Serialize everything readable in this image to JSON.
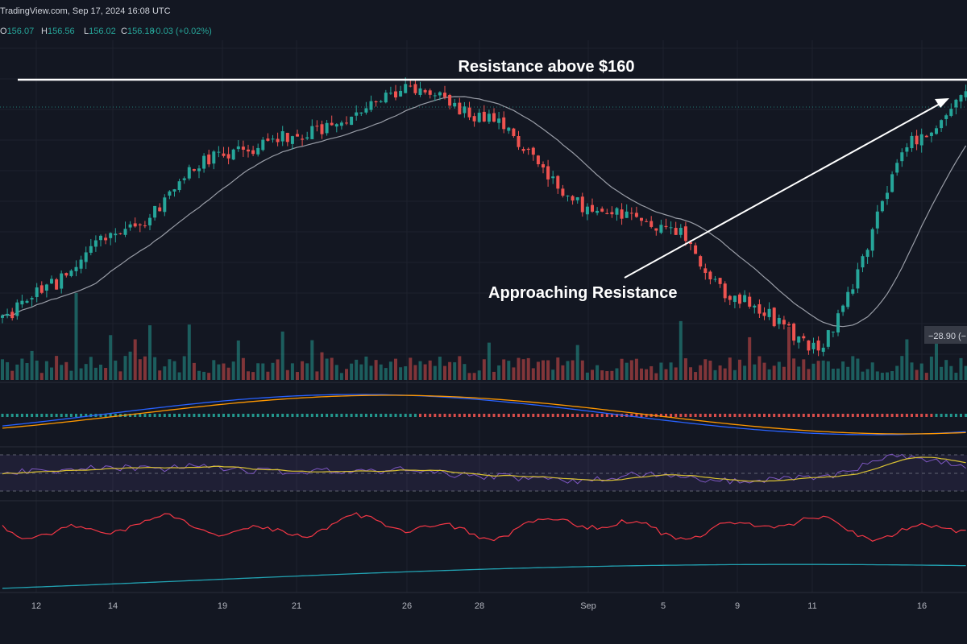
{
  "header": {
    "source": "TradingView.com, Sep 17, 2024 16:08 UTC",
    "ohlc": [
      {
        "key": "O",
        "value": "156.07"
      },
      {
        "key": "H",
        "value": "156.56"
      },
      {
        "key": "L",
        "value": "156.02"
      },
      {
        "key": "C",
        "value": "156.18"
      }
    ],
    "change": "+0.03 (+0.02%)"
  },
  "annotations": {
    "resistance": "Resistance above $160",
    "approaching": "Approaching Resistance",
    "volume_badge": "−28.90 (−"
  },
  "colors": {
    "background": "#131722",
    "up": "#26a69a",
    "down": "#ef5350",
    "ma": "#b2b5be",
    "macd": "#2962ff",
    "signal": "#ff9800",
    "rsi": "#7e57c2",
    "rsi_ma": "#d9c133",
    "osc": "#f23645",
    "osc2": "#22a3b3",
    "text": "#b2b5be",
    "header_value": "#26a69a"
  },
  "chart_data": {
    "type": "candlestick",
    "price_level_label": "Resistance above $160",
    "x_ticks": [
      "12",
      "14",
      "19",
      "21",
      "26",
      "28",
      "Sep",
      "5",
      "9",
      "11",
      "16"
    ],
    "price_anchors": [
      {
        "label": "12",
        "close": 137
      },
      {
        "label": "14",
        "close": 143
      },
      {
        "label": "19",
        "close": 152
      },
      {
        "label": "21",
        "close": 154
      },
      {
        "label": "26",
        "close": 159
      },
      {
        "label": "28",
        "close": 156
      },
      {
        "label": "Sep",
        "close": 146
      },
      {
        "label": "5",
        "close": 144
      },
      {
        "label": "9",
        "close": 136
      },
      {
        "label": "11",
        "close": 131
      },
      {
        "label": "16",
        "close": 154
      }
    ],
    "panels": [
      "price",
      "volume",
      "macd",
      "rsi",
      "oscillator"
    ]
  }
}
